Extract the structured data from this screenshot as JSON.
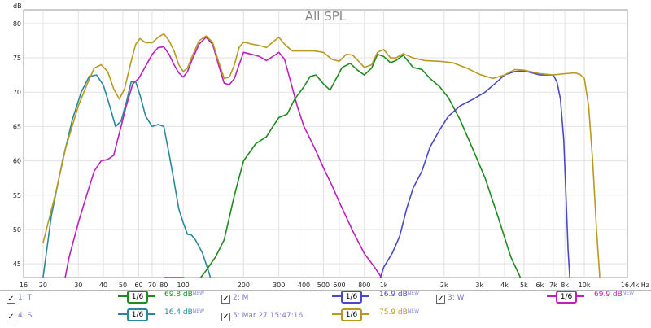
{
  "chart_data": {
    "type": "line",
    "title": "All SPL",
    "ylabel": "dB",
    "xlabel": "",
    "x_unit": "Hz",
    "x_scale": "log",
    "xlim": [
      16,
      16400
    ],
    "ylim": [
      43,
      82
    ],
    "grid": true,
    "x_ticks": [
      {
        "v": 16,
        "t": "16"
      },
      {
        "v": 20,
        "t": "20"
      },
      {
        "v": 30,
        "t": "30"
      },
      {
        "v": 40,
        "t": "40"
      },
      {
        "v": 50,
        "t": "50"
      },
      {
        "v": 60,
        "t": "60"
      },
      {
        "v": 70,
        "t": "70"
      },
      {
        "v": 80,
        "t": "80"
      },
      {
        "v": 100,
        "t": "100"
      },
      {
        "v": 200,
        "t": "200"
      },
      {
        "v": 300,
        "t": "300"
      },
      {
        "v": 400,
        "t": "400"
      },
      {
        "v": 500,
        "t": "500"
      },
      {
        "v": 600,
        "t": "600"
      },
      {
        "v": 800,
        "t": "800"
      },
      {
        "v": 1000,
        "t": "1k"
      },
      {
        "v": 2000,
        "t": "2k"
      },
      {
        "v": 3000,
        "t": "3k"
      },
      {
        "v": 4000,
        "t": "4k"
      },
      {
        "v": 5000,
        "t": "5k"
      },
      {
        "v": 6000,
        "t": "6k"
      },
      {
        "v": 7000,
        "t": "7k"
      },
      {
        "v": 8000,
        "t": "8k"
      },
      {
        "v": 10000,
        "t": "10k"
      },
      {
        "v": 16400,
        "t": "16.4k Hz"
      }
    ],
    "y_ticks": [
      45,
      50,
      55,
      60,
      65,
      70,
      75,
      80
    ],
    "series": [
      {
        "name": "1: T",
        "color": "#1f8a1f",
        "points": [
          [
            80,
            43
          ],
          [
            100,
            43
          ],
          [
            115,
            42
          ],
          [
            130,
            44
          ],
          [
            145,
            46
          ],
          [
            160,
            48.5
          ],
          [
            180,
            55
          ],
          [
            200,
            60
          ],
          [
            230,
            62.5
          ],
          [
            260,
            63.5
          ],
          [
            280,
            65
          ],
          [
            300,
            66.3
          ],
          [
            330,
            66.8
          ],
          [
            360,
            69
          ],
          [
            400,
            70.8
          ],
          [
            430,
            72.3
          ],
          [
            460,
            72.5
          ],
          [
            500,
            71.2
          ],
          [
            540,
            70.3
          ],
          [
            570,
            71.6
          ],
          [
            620,
            73.6
          ],
          [
            680,
            74.2
          ],
          [
            740,
            73.2
          ],
          [
            800,
            72.5
          ],
          [
            870,
            73.5
          ],
          [
            930,
            75.5
          ],
          [
            1000,
            75.2
          ],
          [
            1080,
            74.3
          ],
          [
            1150,
            74.6
          ],
          [
            1250,
            75.4
          ],
          [
            1400,
            73.6
          ],
          [
            1550,
            73.3
          ],
          [
            1700,
            72
          ],
          [
            1900,
            70.8
          ],
          [
            2100,
            69.2
          ],
          [
            2400,
            66
          ],
          [
            2800,
            61.5
          ],
          [
            3200,
            57.5
          ],
          [
            3700,
            52
          ],
          [
            4300,
            46
          ],
          [
            4800,
            43
          ],
          [
            5200,
            41
          ]
        ]
      },
      {
        "name": "2: M",
        "color": "#4a4ac8",
        "points": [
          [
            900,
            41
          ],
          [
            950,
            42.5
          ],
          [
            1000,
            44.5
          ],
          [
            1100,
            46.5
          ],
          [
            1200,
            49
          ],
          [
            1300,
            53
          ],
          [
            1400,
            56
          ],
          [
            1550,
            58.5
          ],
          [
            1700,
            62
          ],
          [
            1900,
            64.5
          ],
          [
            2100,
            66.5
          ],
          [
            2400,
            68
          ],
          [
            2800,
            69
          ],
          [
            3200,
            70
          ],
          [
            3600,
            71.3
          ],
          [
            4000,
            72.5
          ],
          [
            4500,
            73
          ],
          [
            5000,
            73.1
          ],
          [
            5500,
            72.8
          ],
          [
            6000,
            72.5
          ],
          [
            6500,
            72.5
          ],
          [
            7000,
            72.5
          ],
          [
            7300,
            71.5
          ],
          [
            7600,
            69
          ],
          [
            7900,
            63
          ],
          [
            8100,
            55
          ],
          [
            8300,
            47
          ],
          [
            8500,
            42
          ],
          [
            8700,
            40
          ]
        ]
      },
      {
        "name": "3: W",
        "color": "#bb22bb",
        "points": [
          [
            25,
            41
          ],
          [
            27,
            46
          ],
          [
            30,
            51
          ],
          [
            33,
            55
          ],
          [
            36,
            58.5
          ],
          [
            39,
            60
          ],
          [
            42,
            60.2
          ],
          [
            45,
            60.8
          ],
          [
            48,
            64
          ],
          [
            52,
            68
          ],
          [
            56,
            71.2
          ],
          [
            60,
            72
          ],
          [
            65,
            73.8
          ],
          [
            70,
            75.5
          ],
          [
            75,
            76.5
          ],
          [
            80,
            76.6
          ],
          [
            85,
            75.5
          ],
          [
            90,
            74
          ],
          [
            95,
            72.8
          ],
          [
            100,
            72.2
          ],
          [
            105,
            73
          ],
          [
            110,
            74.5
          ],
          [
            120,
            77
          ],
          [
            130,
            78
          ],
          [
            140,
            77
          ],
          [
            150,
            74
          ],
          [
            160,
            71.3
          ],
          [
            170,
            71.1
          ],
          [
            180,
            72
          ],
          [
            190,
            74
          ],
          [
            200,
            75.8
          ],
          [
            220,
            75.5
          ],
          [
            240,
            75.2
          ],
          [
            260,
            74.6
          ],
          [
            280,
            75.2
          ],
          [
            300,
            75.8
          ],
          [
            320,
            74.8
          ],
          [
            340,
            72
          ],
          [
            370,
            68
          ],
          [
            400,
            65
          ],
          [
            450,
            62
          ],
          [
            500,
            59
          ],
          [
            550,
            56.5
          ],
          [
            600,
            54
          ],
          [
            700,
            49.8
          ],
          [
            800,
            46.5
          ],
          [
            900,
            44.5
          ],
          [
            1000,
            42.5
          ],
          [
            1100,
            41
          ]
        ]
      },
      {
        "name": "4: S",
        "color": "#2a8a9a",
        "points": [
          [
            16,
            40
          ],
          [
            18,
            41
          ],
          [
            20,
            43
          ],
          [
            22,
            52
          ],
          [
            25,
            60
          ],
          [
            28,
            66
          ],
          [
            31,
            70
          ],
          [
            34,
            72.3
          ],
          [
            37,
            72.5
          ],
          [
            40,
            71
          ],
          [
            43,
            68
          ],
          [
            46,
            65
          ],
          [
            49,
            65.8
          ],
          [
            52,
            68.5
          ],
          [
            55,
            71.5
          ],
          [
            58,
            71.5
          ],
          [
            61,
            69.5
          ],
          [
            65,
            66.5
          ],
          [
            70,
            65
          ],
          [
            75,
            65.3
          ],
          [
            80,
            65
          ],
          [
            85,
            61
          ],
          [
            90,
            57
          ],
          [
            95,
            53
          ],
          [
            100,
            51
          ],
          [
            105,
            49.3
          ],
          [
            110,
            49.2
          ],
          [
            115,
            48.5
          ],
          [
            120,
            47.5
          ],
          [
            125,
            46.5
          ],
          [
            130,
            45
          ],
          [
            135,
            43.5
          ],
          [
            140,
            42
          ]
        ]
      },
      {
        "name": "5: Mar 27 15:47:16",
        "color": "#b89a20",
        "points": [
          [
            20,
            48
          ],
          [
            21,
            50.5
          ],
          [
            23,
            55
          ],
          [
            26,
            62
          ],
          [
            30,
            68
          ],
          [
            33,
            71
          ],
          [
            36,
            73.5
          ],
          [
            39,
            74
          ],
          [
            42,
            73
          ],
          [
            45,
            70.5
          ],
          [
            48,
            69
          ],
          [
            51,
            70.5
          ],
          [
            55,
            74.5
          ],
          [
            58,
            77
          ],
          [
            61,
            77.8
          ],
          [
            65,
            77.2
          ],
          [
            70,
            77.2
          ],
          [
            75,
            78
          ],
          [
            80,
            78.5
          ],
          [
            85,
            77.5
          ],
          [
            90,
            76
          ],
          [
            95,
            74
          ],
          [
            100,
            73
          ],
          [
            105,
            73.5
          ],
          [
            110,
            75
          ],
          [
            120,
            77.5
          ],
          [
            130,
            78.2
          ],
          [
            140,
            77.3
          ],
          [
            150,
            74.5
          ],
          [
            160,
            72
          ],
          [
            170,
            72.2
          ],
          [
            180,
            74
          ],
          [
            190,
            76.5
          ],
          [
            200,
            77.3
          ],
          [
            220,
            77
          ],
          [
            240,
            76.8
          ],
          [
            260,
            76.5
          ],
          [
            280,
            77.3
          ],
          [
            300,
            78
          ],
          [
            320,
            77
          ],
          [
            350,
            76
          ],
          [
            400,
            76
          ],
          [
            450,
            76
          ],
          [
            500,
            75.8
          ],
          [
            550,
            74.8
          ],
          [
            600,
            74.5
          ],
          [
            650,
            75.5
          ],
          [
            700,
            75.4
          ],
          [
            750,
            74.5
          ],
          [
            800,
            73.6
          ],
          [
            870,
            74
          ],
          [
            930,
            75.8
          ],
          [
            1000,
            76.2
          ],
          [
            1080,
            75
          ],
          [
            1150,
            75
          ],
          [
            1250,
            75.6
          ],
          [
            1400,
            75
          ],
          [
            1600,
            74.6
          ],
          [
            1900,
            74.5
          ],
          [
            2200,
            74.3
          ],
          [
            2600,
            73.5
          ],
          [
            3000,
            72.6
          ],
          [
            3500,
            72
          ],
          [
            4000,
            72.5
          ],
          [
            4500,
            73.3
          ],
          [
            5000,
            73.2
          ],
          [
            6000,
            72.7
          ],
          [
            7000,
            72.5
          ],
          [
            8000,
            72.7
          ],
          [
            9000,
            72.8
          ],
          [
            9500,
            72.6
          ],
          [
            10000,
            72
          ],
          [
            10500,
            68
          ],
          [
            11000,
            60
          ],
          [
            11500,
            50
          ],
          [
            12000,
            42
          ],
          [
            12500,
            40
          ]
        ]
      }
    ]
  },
  "legend": [
    {
      "check": "✓",
      "name": "1: T",
      "smoothing": "1/6",
      "value": "69.8 dB",
      "badge": "NEW",
      "color": "#1f8a1f"
    },
    {
      "check": "✓",
      "name": "2: M",
      "smoothing": "1/6",
      "value": "16.9 dB",
      "badge": "NEW",
      "color": "#4a4ac8"
    },
    {
      "check": "✓",
      "name": "3: W",
      "smoothing": "1/6",
      "value": "69.9 dB",
      "badge": "NEW",
      "color": "#bb22bb"
    },
    {
      "check": "✓",
      "name": "4: S",
      "smoothing": "1/6",
      "value": "16.4 dB",
      "badge": "NEW",
      "color": "#2a8a9a"
    },
    {
      "check": "✓",
      "name": "5: Mar 27 15:47:16",
      "smoothing": "1/6",
      "value": "75.9 dB",
      "badge": "NEW",
      "color": "#b89a20"
    }
  ]
}
